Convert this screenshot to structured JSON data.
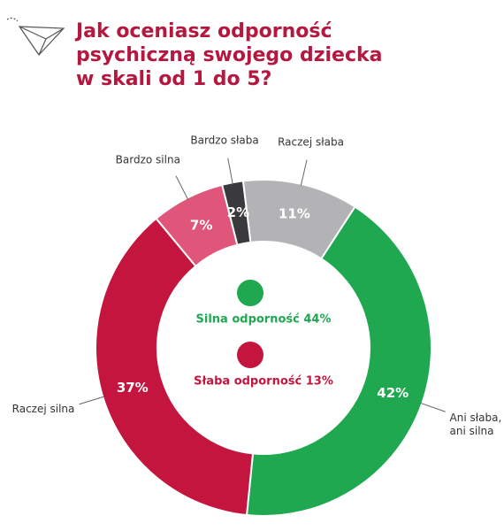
{
  "chart_data": {
    "type": "donut",
    "title": [
      "Jak oceniasz odporność",
      "psychiczną swojego dziecka",
      "w skali od 1 do 5?"
    ],
    "categories": [
      "Raczej słaba",
      "Ani słaba, ani silna",
      "Raczej silna",
      "Bardzo silna",
      "Bardzo słaba"
    ],
    "values": [
      11,
      42,
      37,
      7,
      2
    ],
    "value_labels": [
      "11%",
      "42%",
      "37%",
      "7%",
      "2%"
    ],
    "colors": [
      "#b3b3b5",
      "#1fa84f",
      "#c4153e",
      "#e0557a",
      "#3a3a3c"
    ],
    "center_labels": [
      {
        "text": "Silna odporność 44%",
        "color": "#1fa84f"
      },
      {
        "text": "Słaba odporność 13%",
        "color": "#c4153e"
      }
    ]
  }
}
